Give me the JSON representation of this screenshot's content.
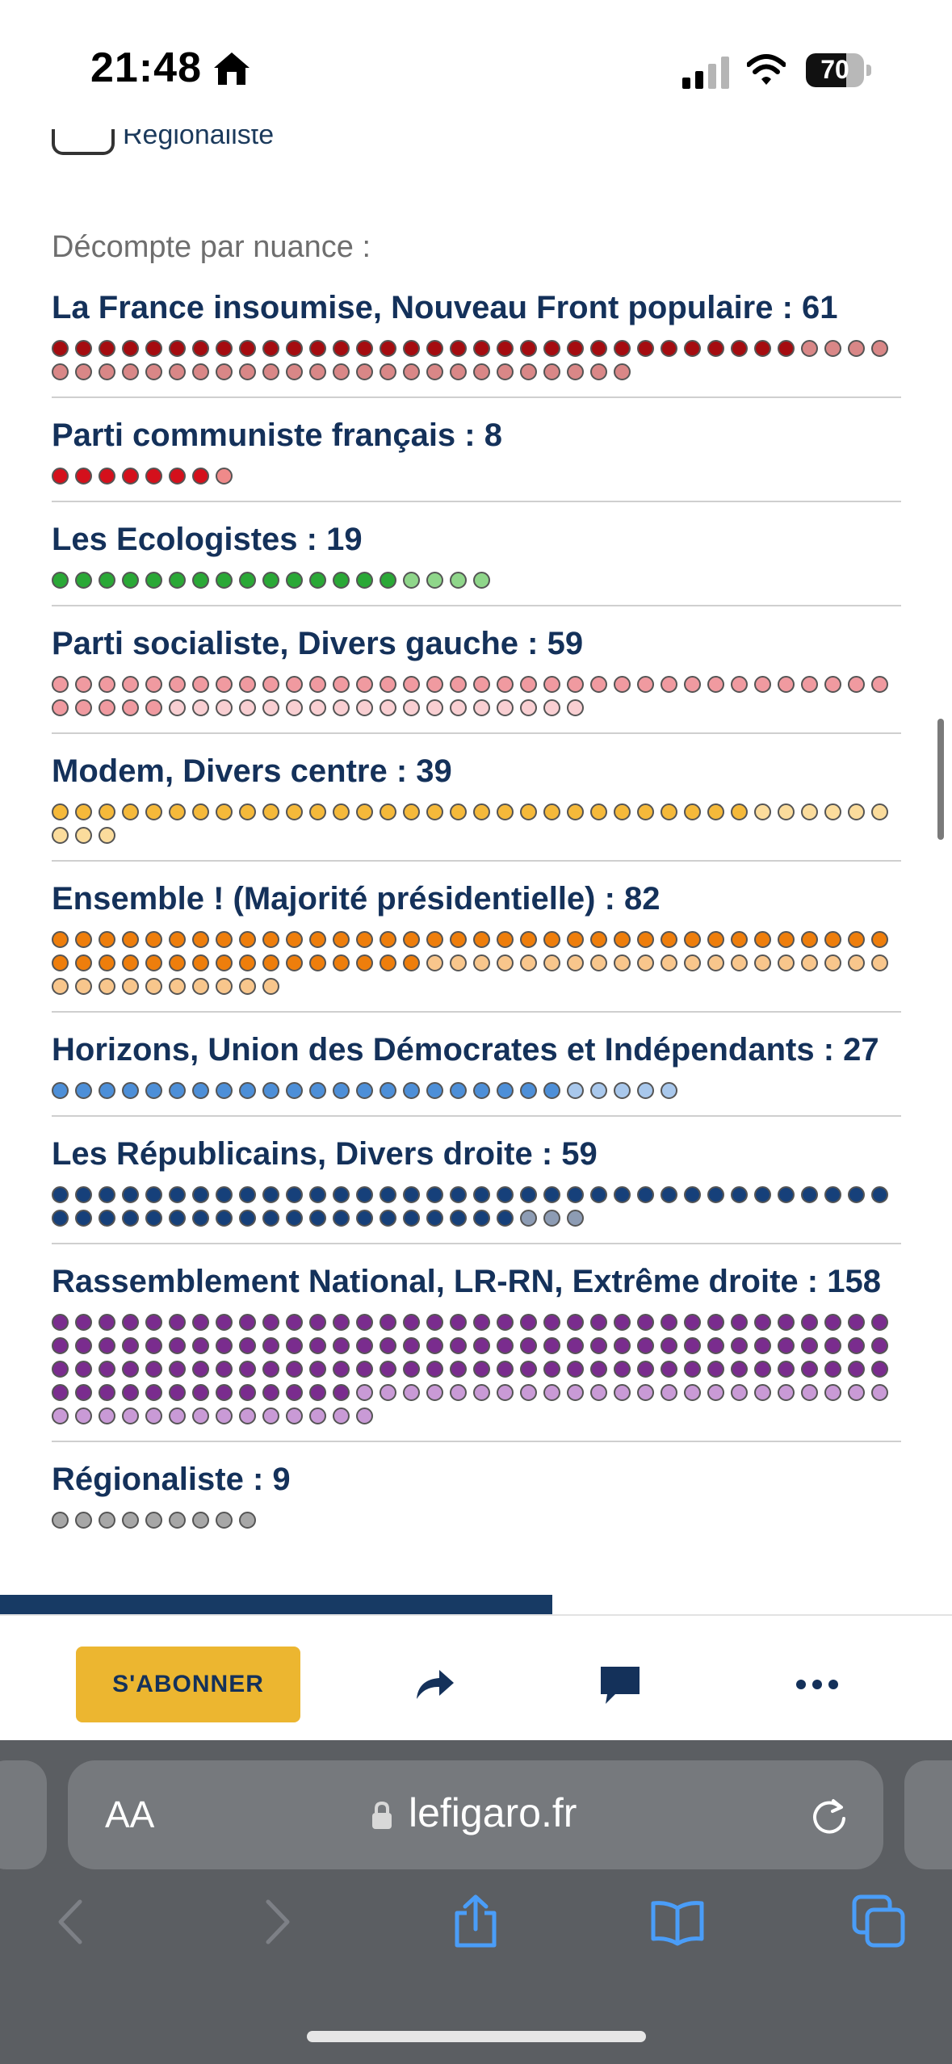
{
  "status_bar": {
    "time": "21:48",
    "battery": "70",
    "battery_level": 0.7
  },
  "content": {
    "legend_partial_label": "Régionaliste",
    "section_title": "Décompte par nuance :",
    "groups": [
      {
        "label": "La France insoumise, Nouveau Front populaire : 61",
        "total": 61,
        "primary_count": 32,
        "primary_color": "#a50c10",
        "secondary_color": "#d98787"
      },
      {
        "label": "Parti communiste français : 8",
        "total": 8,
        "primary_count": 7,
        "primary_color": "#d4101c",
        "secondary_color": "#ef8a8a"
      },
      {
        "label": "Les Ecologistes : 19",
        "total": 19,
        "primary_count": 15,
        "primary_color": "#2aa836",
        "secondary_color": "#8fd68a"
      },
      {
        "label": "Parti socialiste, Divers gauche : 59",
        "total": 59,
        "primary_count": 41,
        "primary_color": "#f09aa0",
        "secondary_color": "#f9cfd2"
      },
      {
        "label": "Modem, Divers centre : 39",
        "total": 39,
        "primary_count": 30,
        "primary_color": "#f5b93a",
        "secondary_color": "#fbdc9c"
      },
      {
        "label": "Ensemble ! (Majorité présidentielle) : 82",
        "total": 82,
        "primary_count": 52,
        "primary_color": "#ee7e0c",
        "secondary_color": "#f8c68c"
      },
      {
        "label": "Horizons, Union des Démocrates et Indépendants : 27",
        "total": 27,
        "primary_count": 22,
        "primary_color": "#4d8fd8",
        "secondary_color": "#a9c8ec"
      },
      {
        "label": "Les Républicains, Divers droite : 59",
        "total": 59,
        "primary_count": 56,
        "primary_color": "#16407a",
        "secondary_color": "#8d9cb4"
      },
      {
        "label": "Rassemblement National, LR-RN, Extrême droite : 158",
        "total": 158,
        "primary_count": 121,
        "primary_color": "#7a2c8e",
        "secondary_color": "#c99ad6"
      },
      {
        "label": "Régionaliste : 9",
        "total": 9,
        "primary_count": 9,
        "primary_color": "#a7a7a7",
        "secondary_color": "#a7a7a7"
      }
    ]
  },
  "page_progress": 0.58,
  "toolbar": {
    "subscribe_label": "S'ABONNER",
    "share_icon": "share-arrow-icon",
    "comment_icon": "comment-icon",
    "more_icon": "more-icon"
  },
  "browser": {
    "text_size_label": "AA",
    "url": "lefigaro.fr"
  }
}
